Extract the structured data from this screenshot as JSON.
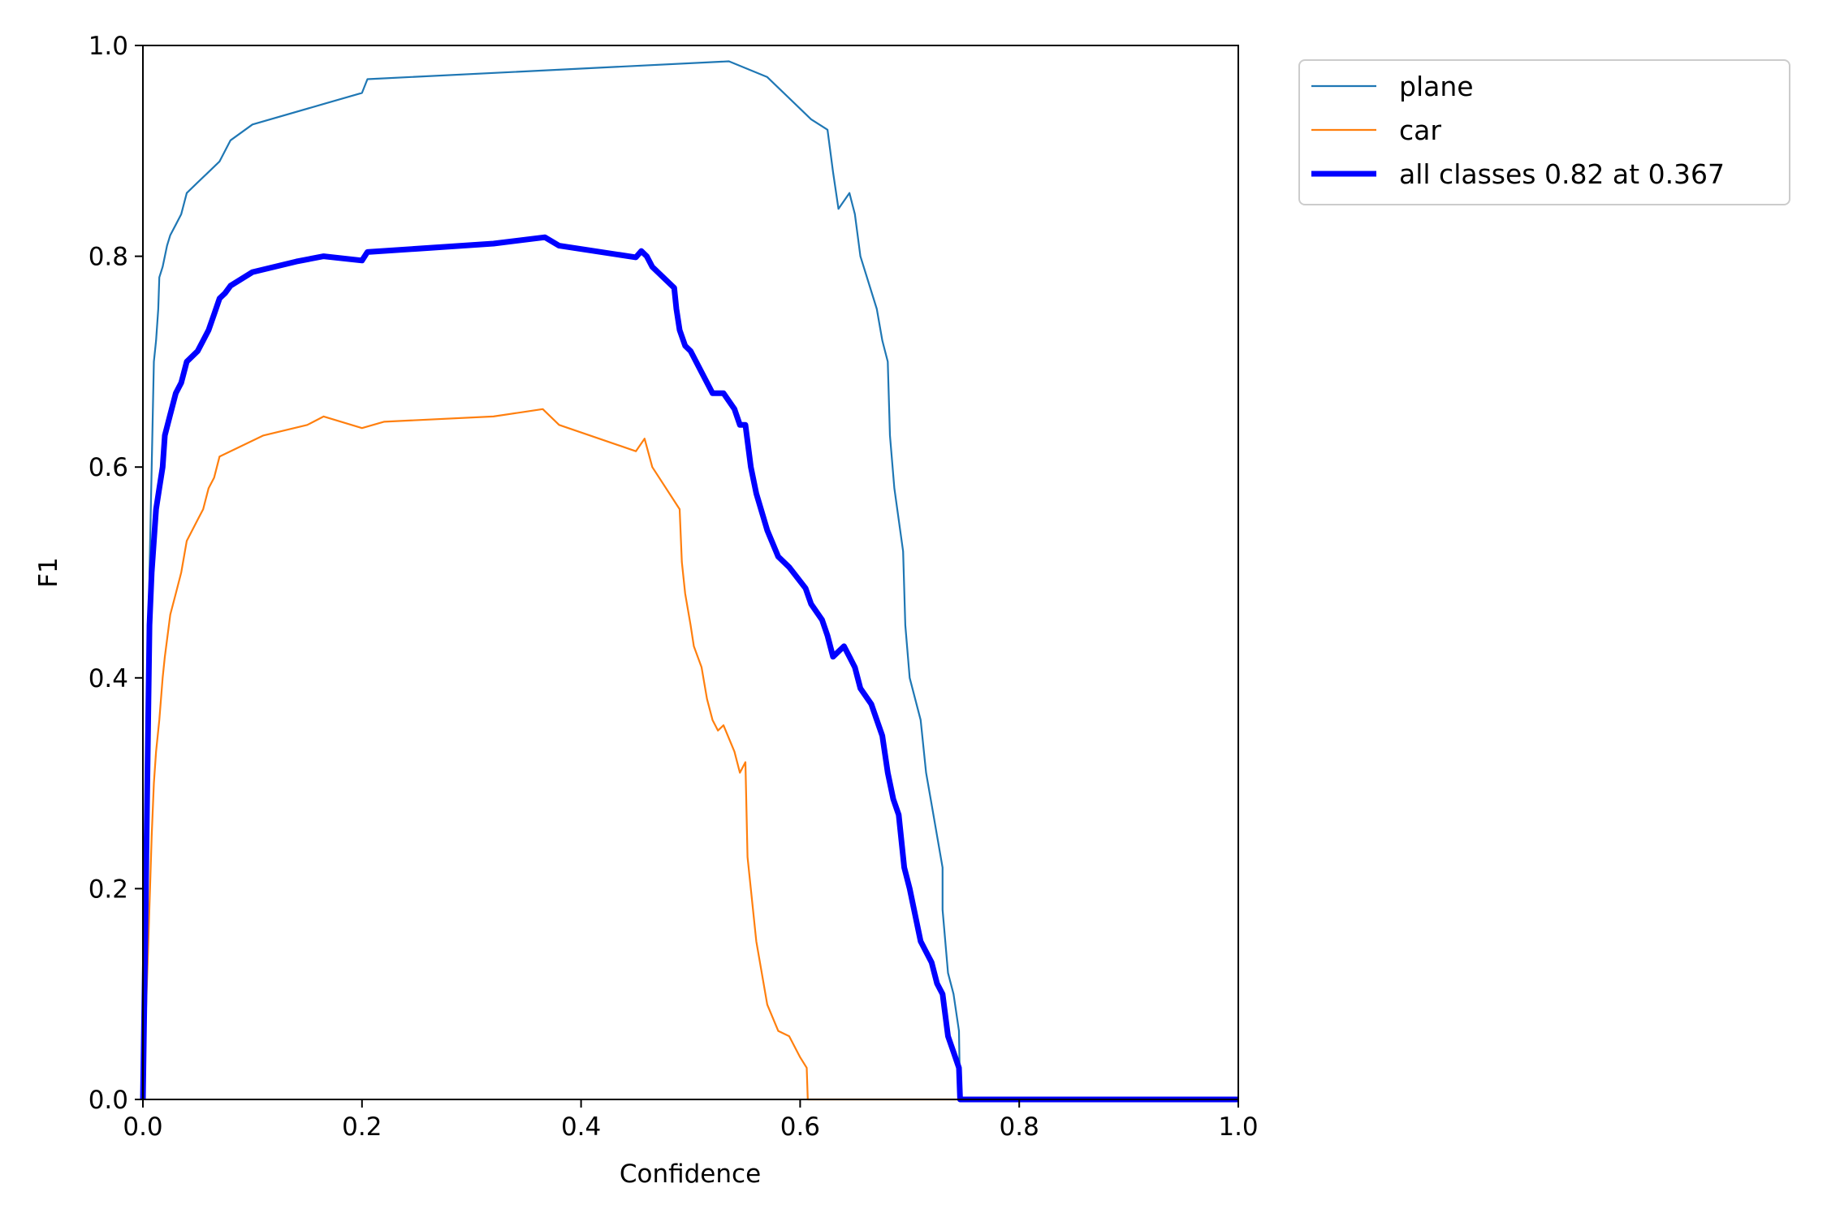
{
  "chart_data": {
    "type": "line",
    "title": "",
    "xlabel": "Confidence",
    "ylabel": "F1",
    "xlim": [
      0.0,
      1.0
    ],
    "ylim": [
      0.0,
      1.0
    ],
    "xticks": [
      "0.0",
      "0.2",
      "0.4",
      "0.6",
      "0.8",
      "1.0"
    ],
    "yticks": [
      "0.0",
      "0.2",
      "0.4",
      "0.6",
      "0.8",
      "1.0"
    ],
    "grid": false,
    "legend_position": "outside top-right",
    "series": [
      {
        "name": "plane",
        "color": "#1f77b4",
        "emphasis": "thin",
        "points": [
          [
            0.0,
            0.0
          ],
          [
            0.002,
            0.15
          ],
          [
            0.004,
            0.3
          ],
          [
            0.006,
            0.5
          ],
          [
            0.008,
            0.6
          ],
          [
            0.01,
            0.7
          ],
          [
            0.012,
            0.72
          ],
          [
            0.014,
            0.75
          ],
          [
            0.015,
            0.78
          ],
          [
            0.018,
            0.79
          ],
          [
            0.02,
            0.8
          ],
          [
            0.022,
            0.81
          ],
          [
            0.025,
            0.82
          ],
          [
            0.03,
            0.83
          ],
          [
            0.035,
            0.84
          ],
          [
            0.04,
            0.86
          ],
          [
            0.05,
            0.87
          ],
          [
            0.06,
            0.88
          ],
          [
            0.07,
            0.89
          ],
          [
            0.08,
            0.91
          ],
          [
            0.1,
            0.925
          ],
          [
            0.2,
            0.955
          ],
          [
            0.205,
            0.968
          ],
          [
            0.535,
            0.985
          ],
          [
            0.57,
            0.97
          ],
          [
            0.61,
            0.93
          ],
          [
            0.625,
            0.92
          ],
          [
            0.63,
            0.88
          ],
          [
            0.635,
            0.845
          ],
          [
            0.645,
            0.86
          ],
          [
            0.65,
            0.84
          ],
          [
            0.655,
            0.8
          ],
          [
            0.67,
            0.75
          ],
          [
            0.675,
            0.72
          ],
          [
            0.68,
            0.7
          ],
          [
            0.682,
            0.63
          ],
          [
            0.686,
            0.58
          ],
          [
            0.69,
            0.55
          ],
          [
            0.694,
            0.52
          ],
          [
            0.696,
            0.45
          ],
          [
            0.7,
            0.4
          ],
          [
            0.71,
            0.36
          ],
          [
            0.715,
            0.31
          ],
          [
            0.72,
            0.28
          ],
          [
            0.73,
            0.22
          ],
          [
            0.73,
            0.18
          ],
          [
            0.735,
            0.12
          ],
          [
            0.74,
            0.1
          ],
          [
            0.745,
            0.065
          ],
          [
            0.746,
            0.0
          ],
          [
            1.0,
            0.0
          ]
        ]
      },
      {
        "name": "car",
        "color": "#ff7f0e",
        "emphasis": "thin",
        "points": [
          [
            0.0,
            0.0
          ],
          [
            0.002,
            0.06
          ],
          [
            0.005,
            0.15
          ],
          [
            0.008,
            0.25
          ],
          [
            0.01,
            0.3
          ],
          [
            0.012,
            0.33
          ],
          [
            0.015,
            0.36
          ],
          [
            0.018,
            0.4
          ],
          [
            0.02,
            0.42
          ],
          [
            0.025,
            0.46
          ],
          [
            0.03,
            0.48
          ],
          [
            0.035,
            0.5
          ],
          [
            0.04,
            0.53
          ],
          [
            0.045,
            0.54
          ],
          [
            0.05,
            0.55
          ],
          [
            0.055,
            0.56
          ],
          [
            0.06,
            0.58
          ],
          [
            0.065,
            0.59
          ],
          [
            0.07,
            0.61
          ],
          [
            0.08,
            0.615
          ],
          [
            0.09,
            0.62
          ],
          [
            0.11,
            0.63
          ],
          [
            0.15,
            0.64
          ],
          [
            0.165,
            0.648
          ],
          [
            0.2,
            0.637
          ],
          [
            0.22,
            0.643
          ],
          [
            0.32,
            0.648
          ],
          [
            0.365,
            0.655
          ],
          [
            0.38,
            0.64
          ],
          [
            0.45,
            0.615
          ],
          [
            0.458,
            0.627
          ],
          [
            0.465,
            0.6
          ],
          [
            0.49,
            0.56
          ],
          [
            0.492,
            0.51
          ],
          [
            0.495,
            0.48
          ],
          [
            0.5,
            0.45
          ],
          [
            0.503,
            0.43
          ],
          [
            0.51,
            0.41
          ],
          [
            0.515,
            0.38
          ],
          [
            0.52,
            0.36
          ],
          [
            0.525,
            0.35
          ],
          [
            0.53,
            0.355
          ],
          [
            0.54,
            0.33
          ],
          [
            0.545,
            0.31
          ],
          [
            0.55,
            0.32
          ],
          [
            0.552,
            0.23
          ],
          [
            0.56,
            0.15
          ],
          [
            0.57,
            0.09
          ],
          [
            0.58,
            0.065
          ],
          [
            0.59,
            0.06
          ],
          [
            0.6,
            0.04
          ],
          [
            0.606,
            0.03
          ],
          [
            0.607,
            0.0
          ],
          [
            1.0,
            0.0
          ]
        ]
      },
      {
        "name": "all classes 0.82 at 0.367",
        "color": "#0000ff",
        "emphasis": "thick",
        "points": [
          [
            0.0,
            0.0
          ],
          [
            0.002,
            0.14
          ],
          [
            0.004,
            0.3
          ],
          [
            0.006,
            0.45
          ],
          [
            0.008,
            0.5
          ],
          [
            0.01,
            0.53
          ],
          [
            0.012,
            0.56
          ],
          [
            0.015,
            0.58
          ],
          [
            0.018,
            0.6
          ],
          [
            0.02,
            0.63
          ],
          [
            0.025,
            0.65
          ],
          [
            0.03,
            0.67
          ],
          [
            0.035,
            0.68
          ],
          [
            0.04,
            0.7
          ],
          [
            0.045,
            0.705
          ],
          [
            0.05,
            0.71
          ],
          [
            0.055,
            0.72
          ],
          [
            0.06,
            0.73
          ],
          [
            0.065,
            0.745
          ],
          [
            0.07,
            0.76
          ],
          [
            0.075,
            0.765
          ],
          [
            0.08,
            0.772
          ],
          [
            0.1,
            0.785
          ],
          [
            0.14,
            0.795
          ],
          [
            0.165,
            0.8
          ],
          [
            0.2,
            0.796
          ],
          [
            0.205,
            0.804
          ],
          [
            0.32,
            0.812
          ],
          [
            0.367,
            0.818
          ],
          [
            0.38,
            0.81
          ],
          [
            0.45,
            0.799
          ],
          [
            0.455,
            0.805
          ],
          [
            0.46,
            0.8
          ],
          [
            0.465,
            0.79
          ],
          [
            0.485,
            0.77
          ],
          [
            0.487,
            0.75
          ],
          [
            0.49,
            0.73
          ],
          [
            0.495,
            0.715
          ],
          [
            0.5,
            0.71
          ],
          [
            0.51,
            0.69
          ],
          [
            0.52,
            0.67
          ],
          [
            0.53,
            0.67
          ],
          [
            0.54,
            0.655
          ],
          [
            0.545,
            0.64
          ],
          [
            0.55,
            0.64
          ],
          [
            0.555,
            0.6
          ],
          [
            0.56,
            0.575
          ],
          [
            0.57,
            0.54
          ],
          [
            0.58,
            0.515
          ],
          [
            0.59,
            0.505
          ],
          [
            0.605,
            0.485
          ],
          [
            0.61,
            0.47
          ],
          [
            0.62,
            0.455
          ],
          [
            0.625,
            0.44
          ],
          [
            0.63,
            0.42
          ],
          [
            0.64,
            0.43
          ],
          [
            0.645,
            0.42
          ],
          [
            0.65,
            0.41
          ],
          [
            0.655,
            0.39
          ],
          [
            0.665,
            0.375
          ],
          [
            0.67,
            0.36
          ],
          [
            0.675,
            0.345
          ],
          [
            0.68,
            0.31
          ],
          [
            0.685,
            0.285
          ],
          [
            0.69,
            0.27
          ],
          [
            0.695,
            0.22
          ],
          [
            0.7,
            0.2
          ],
          [
            0.71,
            0.15
          ],
          [
            0.72,
            0.13
          ],
          [
            0.725,
            0.11
          ],
          [
            0.73,
            0.1
          ],
          [
            0.735,
            0.06
          ],
          [
            0.74,
            0.045
          ],
          [
            0.745,
            0.03
          ],
          [
            0.746,
            0.0
          ],
          [
            1.0,
            0.0
          ]
        ]
      }
    ]
  }
}
